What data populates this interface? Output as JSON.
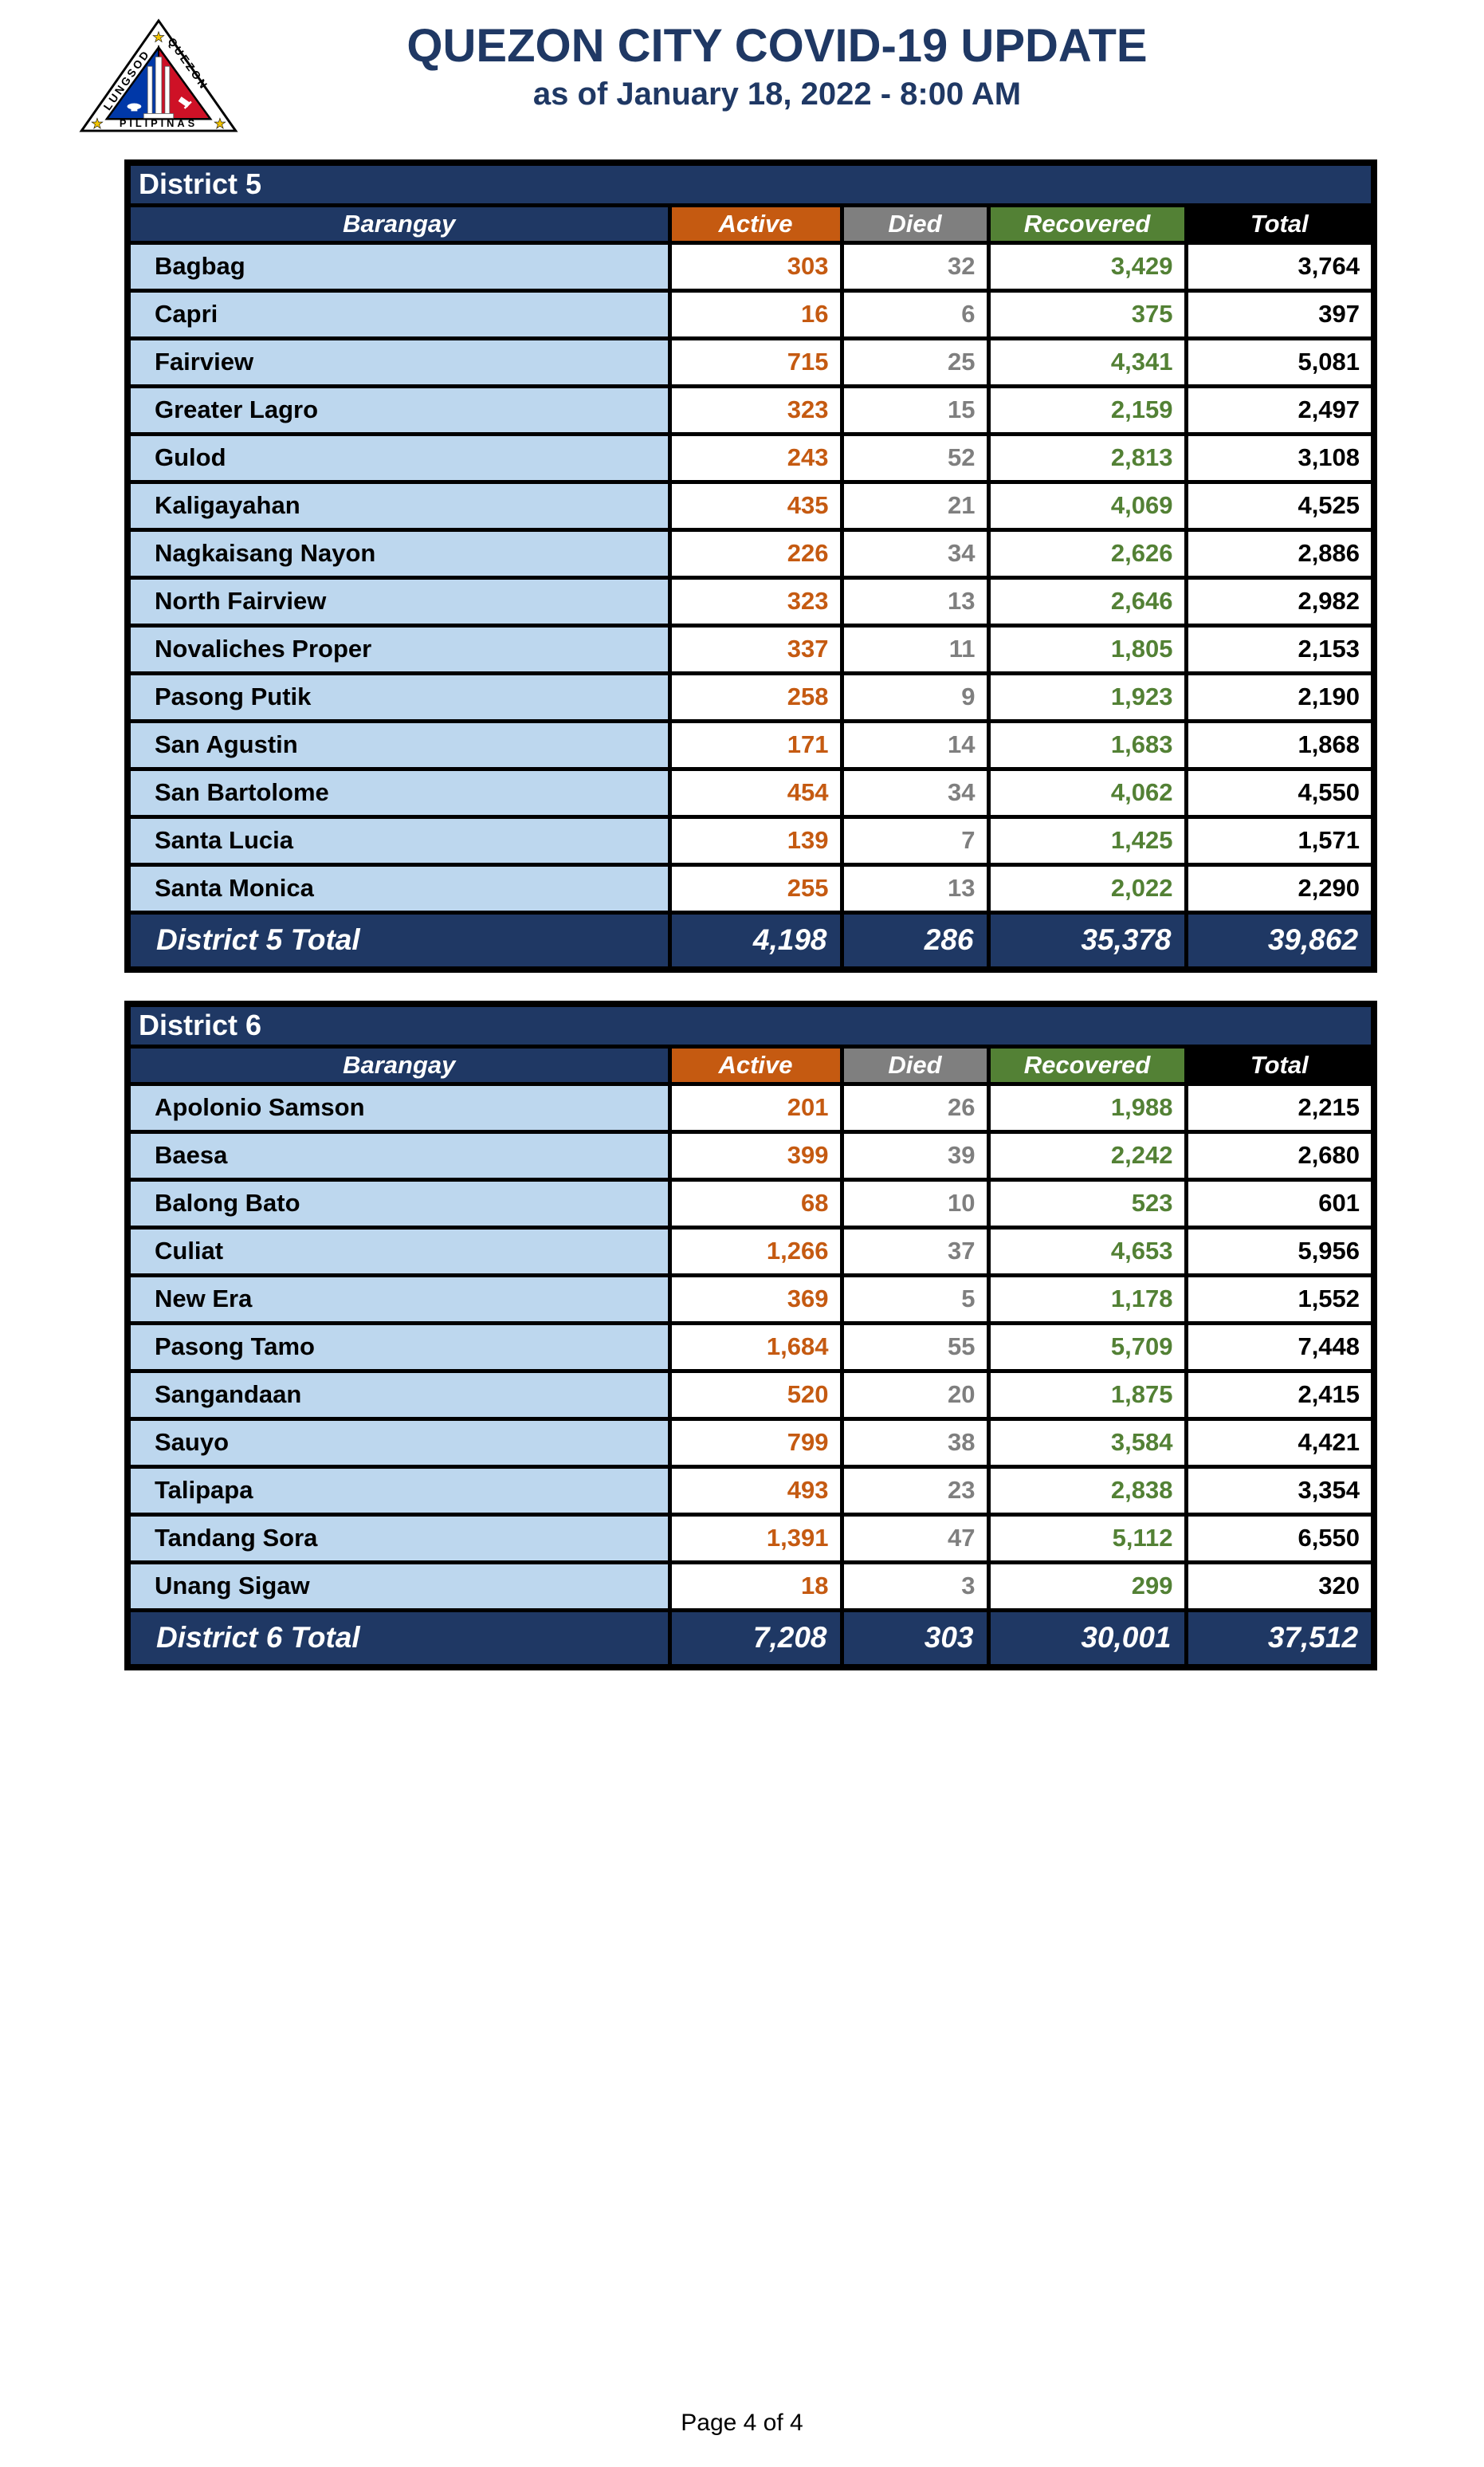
{
  "header": {
    "title": "QUEZON CITY COVID-19 UPDATE",
    "subtitle": "as of January 18, 2022 - 8:00 AM",
    "logo": {
      "text_left": "LUNGSOD",
      "text_right": "QUEZON",
      "text_bottom": "PILIPINAS"
    }
  },
  "columns": [
    {
      "key": "barangay",
      "label": "Barangay",
      "header_bg": "#1F3864",
      "value_color": "#000000"
    },
    {
      "key": "active",
      "label": "Active",
      "header_bg": "#C55A11",
      "value_color": "#C55A11"
    },
    {
      "key": "died",
      "label": "Died",
      "header_bg": "#7F7F7F",
      "value_color": "#7F7F7F"
    },
    {
      "key": "recovered",
      "label": "Recovered",
      "header_bg": "#538135",
      "value_color": "#538135"
    },
    {
      "key": "total",
      "label": "Total",
      "header_bg": "#000000",
      "value_color": "#000000"
    }
  ],
  "districts": [
    {
      "name": "District 5",
      "rows": [
        {
          "barangay": "Bagbag",
          "active": "303",
          "died": "32",
          "recovered": "3,429",
          "total": "3,764"
        },
        {
          "barangay": "Capri",
          "active": "16",
          "died": "6",
          "recovered": "375",
          "total": "397"
        },
        {
          "barangay": "Fairview",
          "active": "715",
          "died": "25",
          "recovered": "4,341",
          "total": "5,081"
        },
        {
          "barangay": "Greater Lagro",
          "active": "323",
          "died": "15",
          "recovered": "2,159",
          "total": "2,497"
        },
        {
          "barangay": "Gulod",
          "active": "243",
          "died": "52",
          "recovered": "2,813",
          "total": "3,108"
        },
        {
          "barangay": "Kaligayahan",
          "active": "435",
          "died": "21",
          "recovered": "4,069",
          "total": "4,525"
        },
        {
          "barangay": "Nagkaisang Nayon",
          "active": "226",
          "died": "34",
          "recovered": "2,626",
          "total": "2,886"
        },
        {
          "barangay": "North Fairview",
          "active": "323",
          "died": "13",
          "recovered": "2,646",
          "total": "2,982"
        },
        {
          "barangay": "Novaliches Proper",
          "active": "337",
          "died": "11",
          "recovered": "1,805",
          "total": "2,153"
        },
        {
          "barangay": "Pasong Putik",
          "active": "258",
          "died": "9",
          "recovered": "1,923",
          "total": "2,190"
        },
        {
          "barangay": "San Agustin",
          "active": "171",
          "died": "14",
          "recovered": "1,683",
          "total": "1,868"
        },
        {
          "barangay": "San Bartolome",
          "active": "454",
          "died": "34",
          "recovered": "4,062",
          "total": "4,550"
        },
        {
          "barangay": "Santa Lucia",
          "active": "139",
          "died": "7",
          "recovered": "1,425",
          "total": "1,571"
        },
        {
          "barangay": "Santa Monica",
          "active": "255",
          "died": "13",
          "recovered": "2,022",
          "total": "2,290"
        }
      ],
      "total_row": {
        "label": "District 5 Total",
        "active": "4,198",
        "died": "286",
        "recovered": "35,378",
        "total": "39,862"
      }
    },
    {
      "name": "District 6",
      "rows": [
        {
          "barangay": "Apolonio Samson",
          "active": "201",
          "died": "26",
          "recovered": "1,988",
          "total": "2,215"
        },
        {
          "barangay": "Baesa",
          "active": "399",
          "died": "39",
          "recovered": "2,242",
          "total": "2,680"
        },
        {
          "barangay": "Balong Bato",
          "active": "68",
          "died": "10",
          "recovered": "523",
          "total": "601"
        },
        {
          "barangay": "Culiat",
          "active": "1,266",
          "died": "37",
          "recovered": "4,653",
          "total": "5,956"
        },
        {
          "barangay": "New Era",
          "active": "369",
          "died": "5",
          "recovered": "1,178",
          "total": "1,552"
        },
        {
          "barangay": "Pasong Tamo",
          "active": "1,684",
          "died": "55",
          "recovered": "5,709",
          "total": "7,448"
        },
        {
          "barangay": "Sangandaan",
          "active": "520",
          "died": "20",
          "recovered": "1,875",
          "total": "2,415"
        },
        {
          "barangay": "Sauyo",
          "active": "799",
          "died": "38",
          "recovered": "3,584",
          "total": "4,421"
        },
        {
          "barangay": "Talipapa",
          "active": "493",
          "died": "23",
          "recovered": "2,838",
          "total": "3,354"
        },
        {
          "barangay": "Tandang Sora",
          "active": "1,391",
          "died": "47",
          "recovered": "5,112",
          "total": "6,550"
        },
        {
          "barangay": "Unang Sigaw",
          "active": "18",
          "died": "3",
          "recovered": "299",
          "total": "320"
        }
      ],
      "total_row": {
        "label": "District 6 Total",
        "active": "7,208",
        "died": "303",
        "recovered": "30,001",
        "total": "37,512"
      }
    }
  ],
  "footer": {
    "page_label": "Page 4 of 4"
  },
  "theme": {
    "band_bg": "#1F3864",
    "row_label_bg": "#BDD7EE",
    "title_color": "#1F3864",
    "border_color": "#000000",
    "active_color": "#C55A11",
    "died_color": "#7F7F7F",
    "recovered_color": "#538135",
    "total_header_bg": "#000000",
    "seal_blue": "#0038A8",
    "seal_red": "#CE1126",
    "seal_star_gold": "#F2C400"
  }
}
